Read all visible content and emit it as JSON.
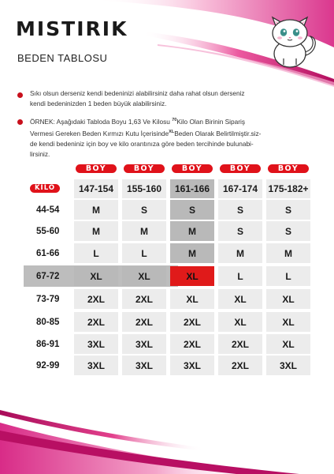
{
  "header": {
    "brand": "MISTIRIK",
    "subtitle": "BEDEN TABLOSU"
  },
  "notes": {
    "note1_line1": "Sıkı olsun derseniz kendi bedeninizi alabilirsiniz daha rahat olsun derseniz",
    "note1_line2": "kendi bedeninizden 1 beden büyük alabilirsiniz.",
    "note2_line1_a": "ÖRNEK: Aşağıdaki Tabloda Boyu 1,63 Ve Kilosu ",
    "note2_line1_small": "70",
    "note2_line1_b": "Kilo Olan Birinin Sipariş",
    "note2_line2_a": "Vermesi Gereken Beden Kırmızı Kutu İçerisinde",
    "note2_line2_small": "XL",
    "note2_line2_b": "Beden Olarak Belirtilmiştir.siz-",
    "note2_line3": "de kendi bedeniniz için boy ve kilo orantınıza göre beden tercihinde bulunabi-",
    "note2_line4": "lirsiniz."
  },
  "table": {
    "boy_label": "BOY",
    "kilo_label": "KİLO",
    "heights": [
      "147-154",
      "155-160",
      "161-166",
      "167-174",
      "175-182+"
    ],
    "weights": [
      "44-54",
      "55-60",
      "61-66",
      "67-72",
      "73-79",
      "80-85",
      "86-91",
      "92-99"
    ],
    "sizes": [
      [
        "M",
        "S",
        "S",
        "S",
        "S"
      ],
      [
        "M",
        "M",
        "M",
        "S",
        "S"
      ],
      [
        "L",
        "L",
        "M",
        "M",
        "M"
      ],
      [
        "XL",
        "XL",
        "XL",
        "L",
        "L"
      ],
      [
        "2XL",
        "2XL",
        "XL",
        "XL",
        "XL"
      ],
      [
        "2XL",
        "2XL",
        "2XL",
        "XL",
        "XL"
      ],
      [
        "3XL",
        "3XL",
        "2XL",
        "2XL",
        "XL"
      ],
      [
        "3XL",
        "3XL",
        "3XL",
        "2XL",
        "3XL"
      ]
    ],
    "highlight": {
      "height": "161-166",
      "weight": "67-72",
      "size": "XL"
    }
  },
  "colors": {
    "accent_red": "#e0121a",
    "cell_gray": "#ececec",
    "highlight_gray": "#b9b9b9",
    "magenta": "#d4147a"
  }
}
